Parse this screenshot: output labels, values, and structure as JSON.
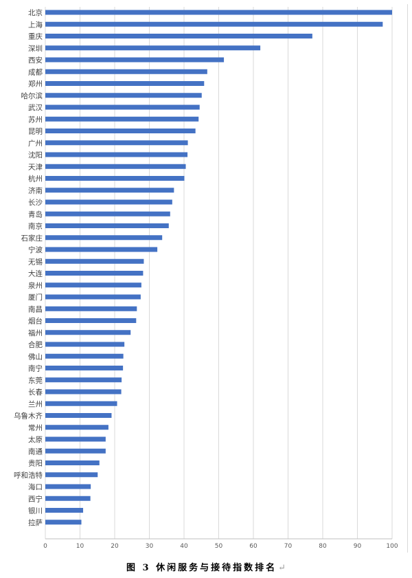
{
  "caption": {
    "text": "图 3  休闲服务与接待指数排名",
    "return_mark": "↵"
  },
  "chart_data": {
    "type": "bar",
    "orientation": "horizontal",
    "bar_color": "#4472c4",
    "grid": true,
    "xlim": [
      0,
      100
    ],
    "xticks": [
      0,
      10,
      20,
      30,
      40,
      50,
      60,
      70,
      80,
      90,
      100
    ],
    "categories": [
      "北京",
      "上海",
      "重庆",
      "深圳",
      "西安",
      "成都",
      "郑州",
      "哈尔滨",
      "武汉",
      "苏州",
      "昆明",
      "广州",
      "沈阳",
      "天津",
      "杭州",
      "济南",
      "长沙",
      "青岛",
      "南京",
      "石家庄",
      "宁波",
      "无锡",
      "大连",
      "泉州",
      "厦门",
      "南昌",
      "烟台",
      "福州",
      "合肥",
      "佛山",
      "南宁",
      "东莞",
      "长春",
      "兰州",
      "乌鲁木齐",
      "常州",
      "太原",
      "南通",
      "贵阳",
      "呼和浩特",
      "海口",
      "西宁",
      "银川",
      "拉萨"
    ],
    "values": [
      100,
      97.3,
      77,
      62,
      51.5,
      46.7,
      45.8,
      45.1,
      44.5,
      44.2,
      43.3,
      41.1,
      41.0,
      40.5,
      40.1,
      37.1,
      36.6,
      36.0,
      35.6,
      33.7,
      32.3,
      28.4,
      28.2,
      27.7,
      27.5,
      26.4,
      26.2,
      24.6,
      22.8,
      22.5,
      22.4,
      22.0,
      21.9,
      20.7,
      19.1,
      18.2,
      17.4,
      17.4,
      15.6,
      15.1,
      13.1,
      13.0,
      10.9,
      10.4
    ],
    "title": "",
    "xlabel": "",
    "ylabel": ""
  }
}
